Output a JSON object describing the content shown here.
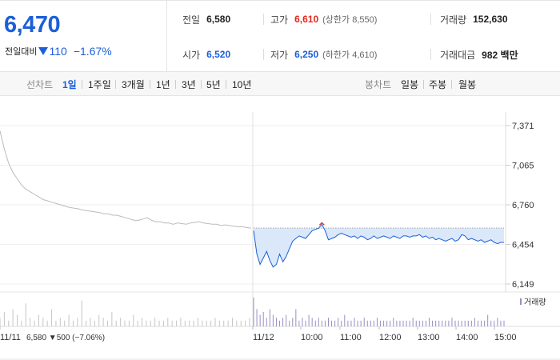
{
  "summary": {
    "price": "6,470",
    "change_label": "전일대비",
    "change_value": "110",
    "change_pct": "−1.67%",
    "prev_close_label": "전일",
    "prev_close": "6,580",
    "high_label": "고가",
    "high": "6,610",
    "upper_limit": "(상한가 8,550)",
    "volume_label": "거래량",
    "volume": "152,630",
    "open_label": "시가",
    "open": "6,520",
    "low_label": "저가",
    "low": "6,250",
    "lower_limit": "(하한가 4,610)",
    "amount_label": "거래대금",
    "amount": "982 백만"
  },
  "tabs": {
    "line_label": "선차트",
    "line_periods": [
      "1일",
      "1주일",
      "3개월",
      "1년",
      "3년",
      "5년",
      "10년"
    ],
    "active": "1일",
    "candle_label": "봉차트",
    "candle_periods": [
      "일봉",
      "주봉",
      "월봉"
    ]
  },
  "colors": {
    "up": "#e3271b",
    "down": "#1b5fd9",
    "prev_day_line": "#bbbbbb",
    "volume_today": "#9b8cc4",
    "volume_prev": "#c6c6c6"
  },
  "chart_data": {
    "type": "line",
    "y_ticks": [
      "7,371",
      "7,065",
      "6,760",
      "6,454",
      "6,149"
    ],
    "ylim": [
      6149,
      7371
    ],
    "x_ticks": [
      "11/11",
      "11/12",
      "10:00",
      "11:00",
      "12:00",
      "13:00",
      "14:00",
      "15:00"
    ],
    "volume_label": "거래량",
    "prev_day_info": "11/11  6,580 ▼500 (−7.06%)",
    "prev_close": 6580,
    "series": [
      {
        "values": [
          7330,
          7190,
          7080,
          7010,
          6960,
          6910,
          6880,
          6860,
          6840,
          6820,
          6800,
          6790,
          6780,
          6770,
          6760,
          6750,
          6740,
          6735,
          6730,
          6720,
          6715,
          6710,
          6705,
          6700,
          6690,
          6690,
          6680,
          6680,
          6670,
          6660,
          6650,
          6640,
          6640,
          6650,
          6660,
          6640,
          6630,
          6630,
          6620,
          6620,
          6610,
          6620,
          6615,
          6610,
          6620,
          6625,
          6630,
          6620,
          6615,
          6610,
          6610,
          6600,
          6605,
          6600,
          6595,
          6590,
          6590,
          6585,
          6580
        ]
      },
      {
        "values": [
          6560,
          6380,
          6300,
          6350,
          6400,
          6330,
          6280,
          6300,
          6380,
          6320,
          6360,
          6420,
          6480,
          6500,
          6520,
          6510,
          6500,
          6530,
          6560,
          6570,
          6580,
          6610,
          6560,
          6490,
          6500,
          6510,
          6530,
          6540,
          6530,
          6520,
          6510,
          6520,
          6500,
          6520,
          6510,
          6490,
          6500,
          6520,
          6500,
          6510,
          6520,
          6510,
          6500,
          6520,
          6510,
          6500,
          6520,
          6520,
          6510,
          6520,
          6520,
          6530,
          6510,
          6520,
          6500,
          6510,
          6490,
          6500,
          6490,
          6480,
          6490,
          6500,
          6480,
          6490,
          6530,
          6520,
          6490,
          6500,
          6490,
          6480,
          6490,
          6470,
          6480,
          6490,
          6470,
          6460,
          6470,
          6470
        ]
      }
    ],
    "volume_prev": [
      3,
      5,
      2,
      6,
      4,
      2,
      8,
      3,
      2,
      4,
      3,
      2,
      6,
      2,
      3,
      2,
      4,
      2,
      3,
      9,
      2,
      3,
      2,
      4,
      3,
      2,
      5,
      2,
      3,
      2,
      2,
      4,
      2,
      3,
      2,
      2,
      3,
      2,
      2,
      3,
      2,
      2,
      3,
      2,
      2,
      2,
      3,
      2,
      2,
      2,
      3,
      2,
      2,
      2,
      3,
      2,
      2,
      2,
      3
    ],
    "volume_today": [
      10,
      6,
      4,
      5,
      3,
      6,
      4,
      3,
      2,
      3,
      4,
      2,
      3,
      6,
      2,
      3,
      2,
      4,
      3,
      2,
      3,
      2,
      2,
      3,
      2,
      2,
      3,
      2,
      4,
      2,
      2,
      3,
      2,
      2,
      3,
      2,
      2,
      2,
      3,
      2,
      2,
      2,
      2,
      3,
      2,
      2,
      2,
      2,
      2,
      3,
      2,
      2,
      2,
      2,
      3,
      2,
      2,
      2,
      2,
      2,
      2,
      3,
      2,
      2,
      2,
      2,
      2,
      2,
      3,
      2,
      2,
      2,
      4,
      2,
      2,
      3,
      2,
      2
    ]
  }
}
